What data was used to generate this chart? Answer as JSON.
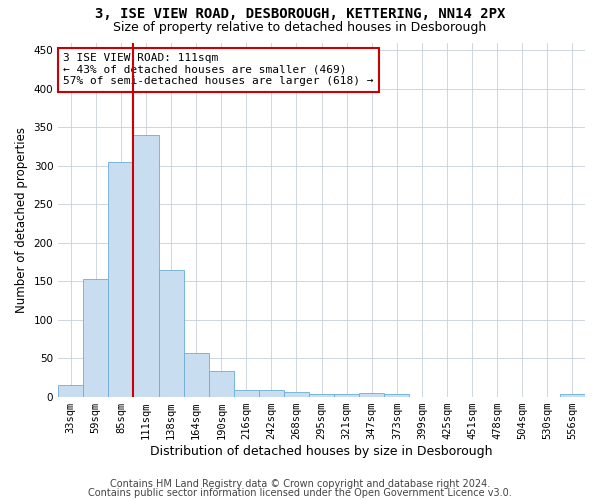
{
  "title1": "3, ISE VIEW ROAD, DESBOROUGH, KETTERING, NN14 2PX",
  "title2": "Size of property relative to detached houses in Desborough",
  "xlabel": "Distribution of detached houses by size in Desborough",
  "ylabel": "Number of detached properties",
  "footer1": "Contains HM Land Registry data © Crown copyright and database right 2024.",
  "footer2": "Contains public sector information licensed under the Open Government Licence v3.0.",
  "annotation_line1": "3 ISE VIEW ROAD: 111sqm",
  "annotation_line2": "← 43% of detached houses are smaller (469)",
  "annotation_line3": "57% of semi-detached houses are larger (618) →",
  "bar_labels": [
    "33sqm",
    "59sqm",
    "85sqm",
    "111sqm",
    "138sqm",
    "164sqm",
    "190sqm",
    "216sqm",
    "242sqm",
    "268sqm",
    "295sqm",
    "321sqm",
    "347sqm",
    "373sqm",
    "399sqm",
    "425sqm",
    "451sqm",
    "478sqm",
    "504sqm",
    "530sqm",
    "556sqm"
  ],
  "bar_values": [
    15,
    153,
    305,
    340,
    165,
    57,
    33,
    9,
    8,
    6,
    4,
    4,
    5,
    4,
    0,
    0,
    0,
    0,
    0,
    0,
    4
  ],
  "bar_color": "#c9ddf0",
  "bar_edge_color": "#6aaed6",
  "vline_color": "#cc0000",
  "vline_x_index": 3,
  "annotation_box_color": "#ffffff",
  "annotation_box_edge": "#cc0000",
  "ylim": [
    0,
    460
  ],
  "yticks": [
    0,
    50,
    100,
    150,
    200,
    250,
    300,
    350,
    400,
    450
  ],
  "background_color": "#ffffff",
  "grid_color": "#c8d0dc",
  "title1_fontsize": 10,
  "title2_fontsize": 9,
  "xlabel_fontsize": 9,
  "ylabel_fontsize": 8.5,
  "tick_fontsize": 7.5,
  "annotation_fontsize": 8,
  "footer_fontsize": 7
}
